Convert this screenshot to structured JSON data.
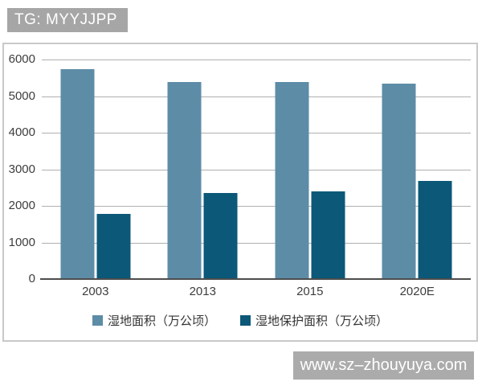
{
  "badge": {
    "text": "TG: MYYJJPP"
  },
  "watermark": {
    "text": "www.sz–zhouyuya.com"
  },
  "chart_data": {
    "type": "bar",
    "title": "",
    "xlabel": "",
    "ylabel": "",
    "categories": [
      "2003",
      "2013",
      "2015",
      "2020E"
    ],
    "series": [
      {
        "name": "湿地面积（万公顷）",
        "color": "#5d8ca7",
        "values": [
          5726,
          5360,
          5360,
          5320
        ]
      },
      {
        "name": "湿地保护面积（万公顷）",
        "color": "#0c5878",
        "values": [
          1750,
          2330,
          2380,
          2660
        ]
      }
    ],
    "ylim": [
      0,
      6000
    ],
    "yticks": [
      0,
      1000,
      2000,
      3000,
      4000,
      5000,
      6000
    ],
    "grid": true,
    "legend_position": "bottom"
  },
  "colors": {
    "bar_light": "#5d8ca7",
    "bar_dark": "#0c5878",
    "gridline": "#b0b0b0",
    "axis": "#4d4d4d",
    "badge_bg": "#a6a6a6",
    "watermark_bg": "#ababab",
    "chart_border": "#c9c9c9",
    "text": "#3d3d3d"
  }
}
